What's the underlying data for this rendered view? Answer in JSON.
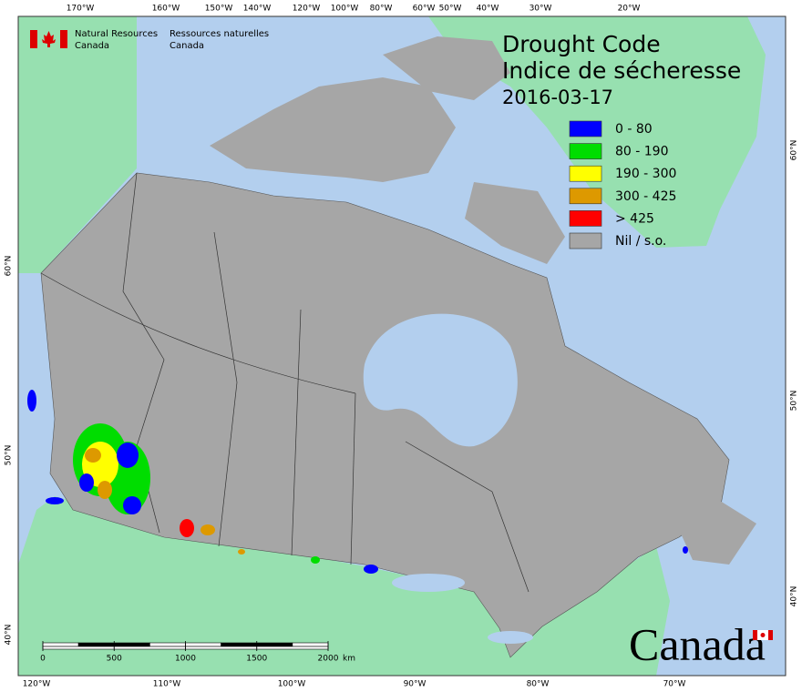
{
  "header": {
    "agency_en": [
      "Natural Resources",
      "Canada"
    ],
    "agency_fr": [
      "Ressources naturelles",
      "Canada"
    ]
  },
  "title": [
    "Drought Code",
    "Indice de sécheresse"
  ],
  "date": "2016-03-17",
  "legend": [
    {
      "label": "0 - 80",
      "color": "#0000ff"
    },
    {
      "label": "80 - 190",
      "color": "#00dd00"
    },
    {
      "label": "190 - 300",
      "color": "#ffff00"
    },
    {
      "label": "300 - 425",
      "color": "#dd9900"
    },
    {
      "label": "> 425",
      "color": "#ff0000"
    },
    {
      "label": "Nil / s.o.",
      "color": "#a6a6a6"
    }
  ],
  "top_labels": [
    "170°W",
    "160°W",
    "150°W",
    "140°W",
    "120°W",
    "100°W",
    "80°W",
    "60°W",
    "50°W",
    "40°W",
    "30°W",
    "20°W"
  ],
  "bottom_labels": [
    "120°W",
    "110°W",
    "100°W",
    "90°W",
    "80°W",
    "70°W"
  ],
  "left_labels": [
    "60°N",
    "50°N",
    "40°N"
  ],
  "right_labels": [
    "60°N",
    "50°N",
    "40°N"
  ],
  "scale": {
    "ticks": [
      0,
      500,
      1000,
      1500,
      2000
    ],
    "unit": "km"
  },
  "wordmark": "Canada"
}
